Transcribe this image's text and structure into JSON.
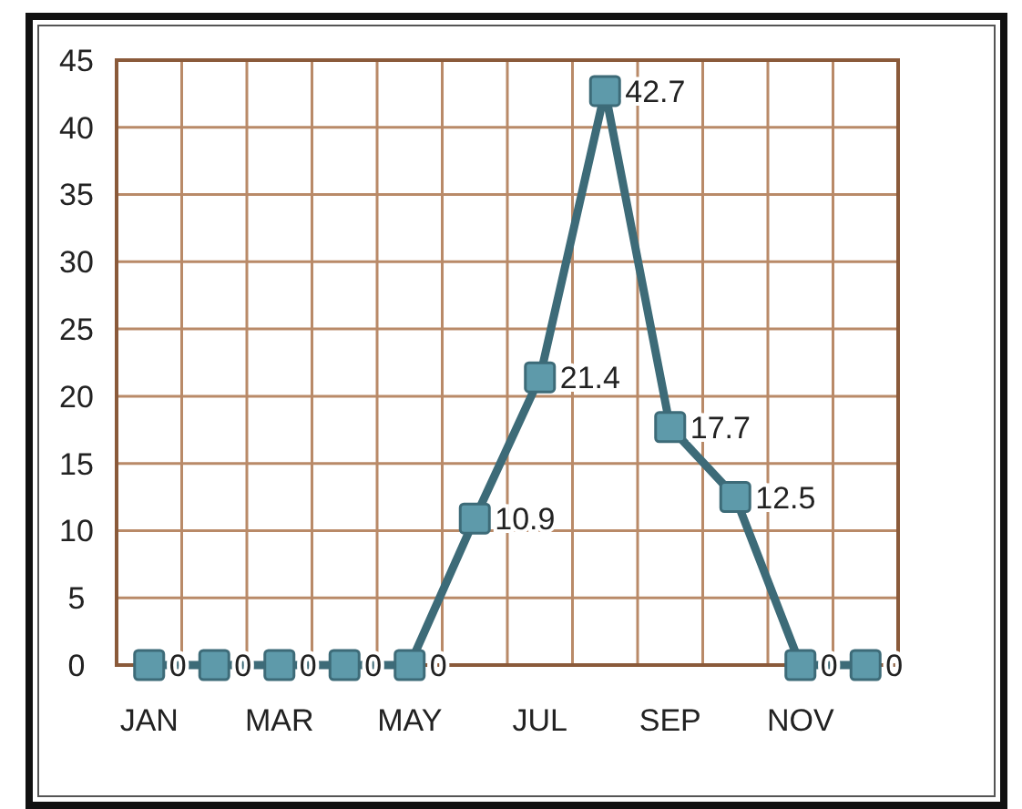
{
  "chart_data": {
    "type": "line",
    "categories": [
      "JAN",
      null,
      "MAR",
      null,
      "MAY",
      null,
      "JUL",
      null,
      "SEP",
      null,
      "NOV",
      null
    ],
    "series": [
      {
        "color": "#3d6b78",
        "values": [
          0,
          0,
          0,
          0,
          0,
          10.9,
          21.4,
          42.7,
          17.7,
          12.5,
          0,
          0
        ]
      }
    ],
    "ylim": [
      0,
      45
    ],
    "yticks": [
      0,
      5,
      10,
      15,
      20,
      25,
      30,
      35,
      40,
      45
    ],
    "grid": true,
    "marker": "square",
    "line_style": "solid",
    "data_labels": true
  }
}
